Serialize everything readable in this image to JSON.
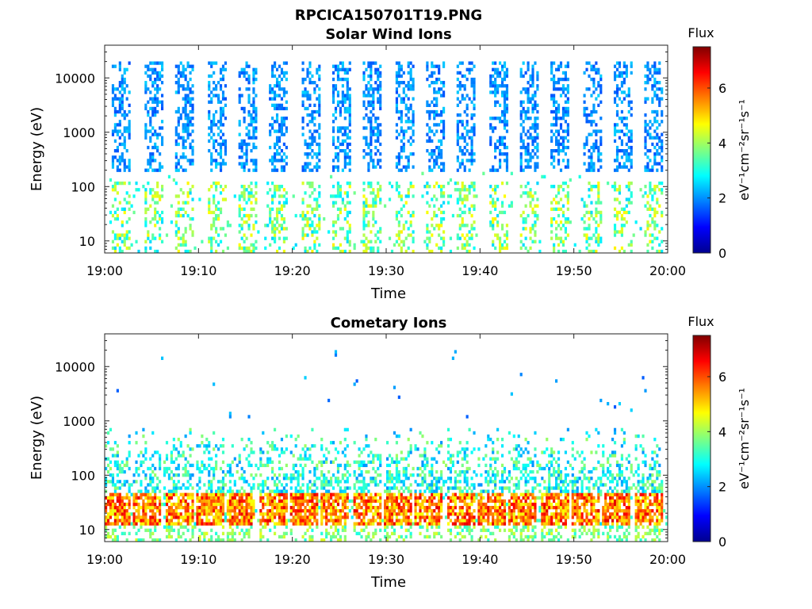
{
  "figure": {
    "title": "RPCICA150701T19.PNG"
  },
  "chart_data": [
    {
      "type": "heatmap",
      "title": "Solar Wind Ions",
      "xlabel": "Time",
      "ylabel": "Energy (eV)",
      "x_range": [
        "19:00",
        "20:00"
      ],
      "x_ticks": [
        "19:00",
        "19:10",
        "19:20",
        "19:30",
        "19:40",
        "19:50",
        "20:00"
      ],
      "y_scale": "log",
      "y_range": [
        6,
        40000
      ],
      "y_ticks": [
        10,
        100,
        1000,
        10000
      ],
      "y_tick_labels": [
        "10",
        "100",
        "1000",
        "10000"
      ],
      "colorbar": {
        "title": "Flux",
        "label": "eV⁻¹cm⁻²sr⁻¹s⁻¹",
        "range": [
          0,
          7.5
        ],
        "ticks": [
          0,
          2,
          4,
          6
        ],
        "colormap": "jet"
      },
      "pattern": {
        "burst_centers_min": [
          1.8,
          5.2,
          8.6,
          11.9,
          15.3,
          18.6,
          21.9,
          25.3,
          28.6,
          32.0,
          35.3,
          38.6,
          42.0,
          45.3,
          48.6,
          52.0,
          55.3,
          58.6
        ],
        "burst_width_min": 1.0,
        "high_energy_band_eV": [
          200,
          20000
        ],
        "high_energy_flux": [
          1.5,
          2.5
        ],
        "low_energy_band_eV": [
          6,
          120
        ],
        "low_energy_flux": [
          2.5,
          4.8
        ]
      }
    },
    {
      "type": "heatmap",
      "title": "Cometary Ions",
      "xlabel": "Time",
      "ylabel": "Energy (eV)",
      "x_range": [
        "19:00",
        "20:00"
      ],
      "x_ticks": [
        "19:00",
        "19:10",
        "19:20",
        "19:30",
        "19:40",
        "19:50",
        "20:00"
      ],
      "y_scale": "log",
      "y_range": [
        6,
        40000
      ],
      "y_ticks": [
        10,
        100,
        1000,
        10000
      ],
      "y_tick_labels": [
        "10",
        "100",
        "1000",
        "10000"
      ],
      "colorbar": {
        "title": "Flux",
        "label": "eV⁻¹cm⁻²sr⁻¹s⁻¹",
        "range": [
          0,
          7.5
        ],
        "ticks": [
          0,
          2,
          4,
          6
        ],
        "colormap": "jet"
      },
      "pattern": {
        "burst_centers_min": [
          1.3,
          4.6,
          8.0,
          11.3,
          14.6,
          18.0,
          21.3,
          24.6,
          28.0,
          31.3,
          34.6,
          38.0,
          41.3,
          44.6,
          48.0,
          51.3,
          54.6,
          58.0
        ],
        "burst_width_min": 1.5,
        "core_band_eV": [
          12,
          45
        ],
        "core_flux": [
          4.5,
          6.8
        ],
        "tail_band_eV": [
          45,
          700
        ],
        "tail_flux": [
          2.0,
          4.0
        ],
        "sparse_high_eV": [
          1000,
          20000
        ],
        "sparse_high_flux": [
          1.5,
          2.5
        ]
      }
    }
  ]
}
